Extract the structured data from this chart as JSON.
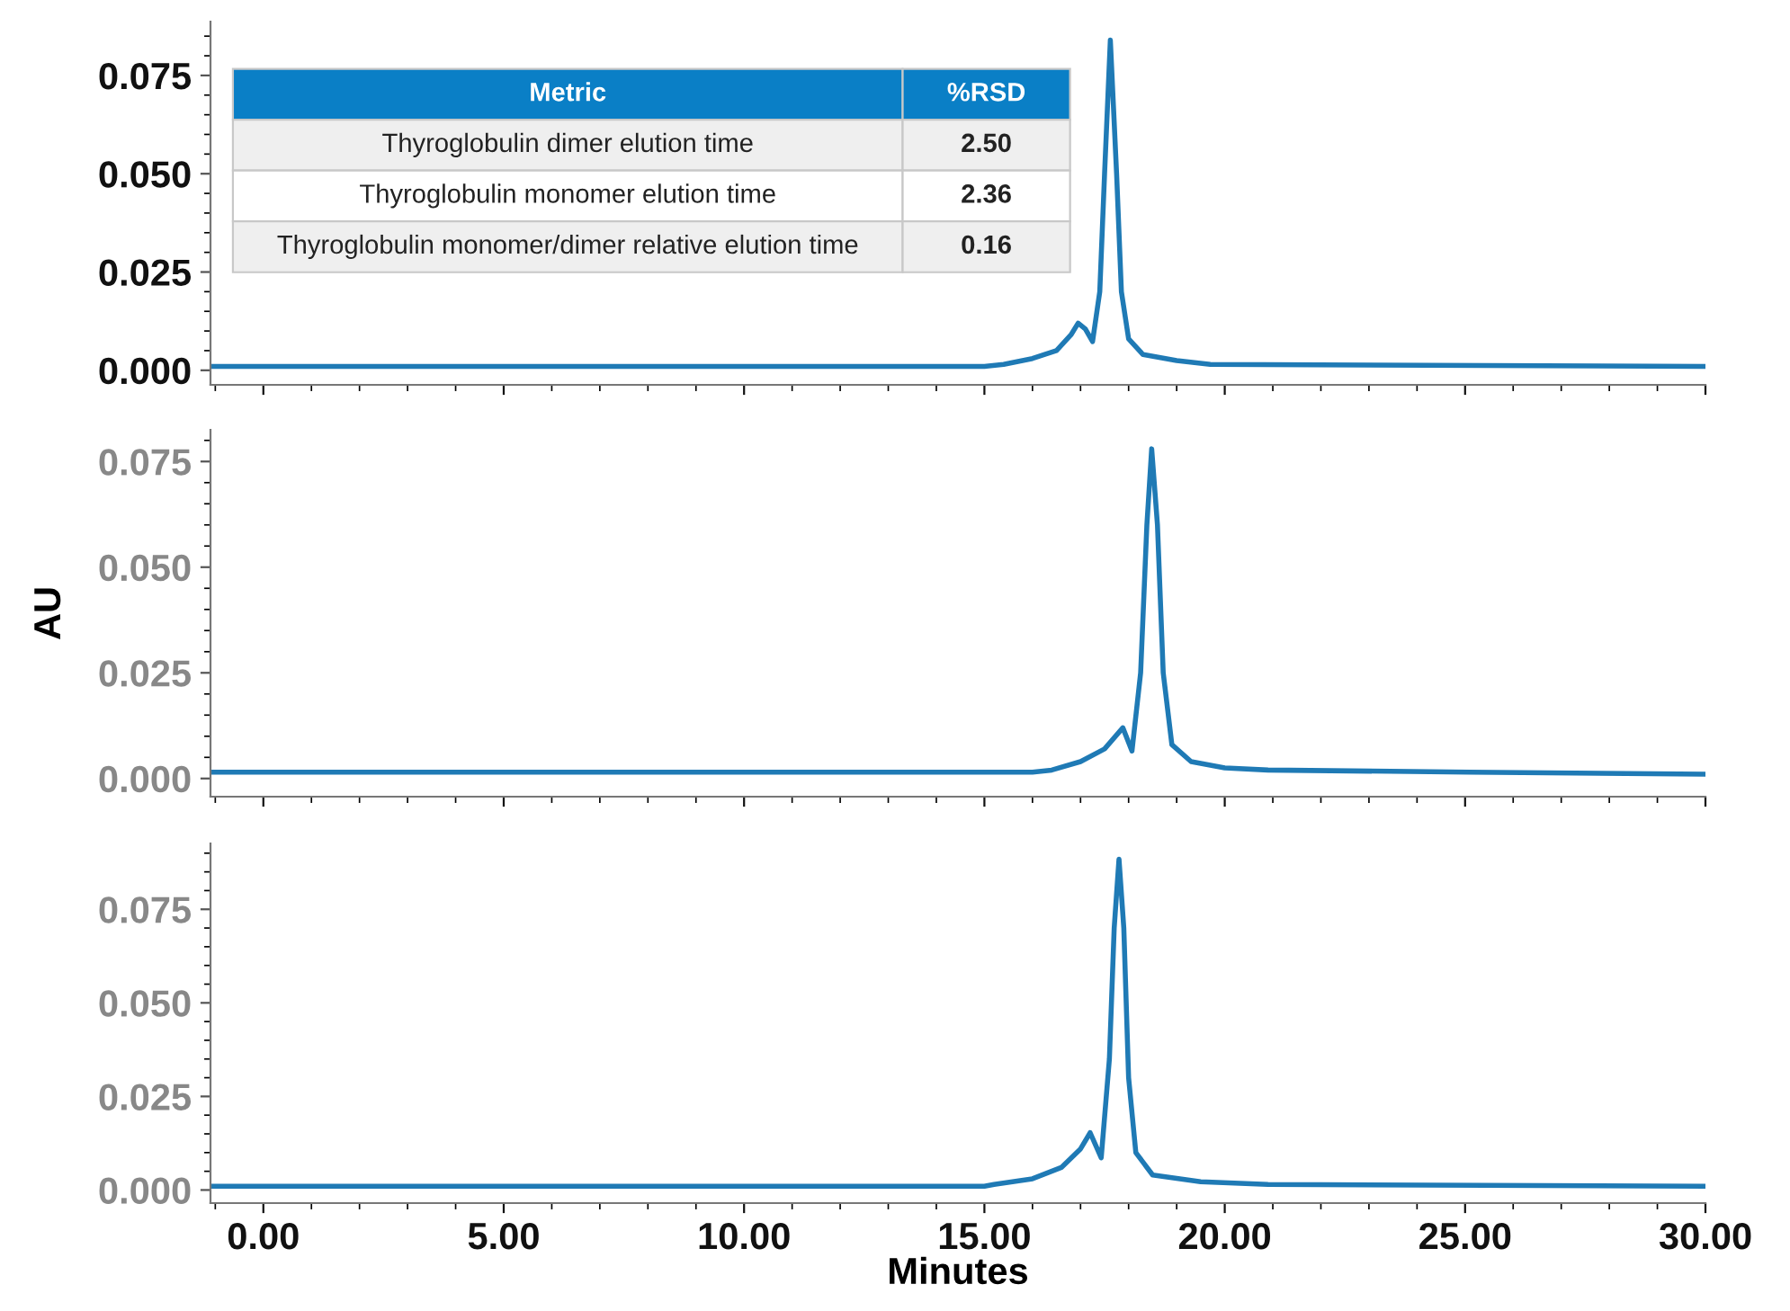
{
  "chart_data": [
    {
      "type": "line",
      "x": [
        -1.1,
        15.0,
        15.4,
        16.0,
        16.5,
        16.8,
        16.95,
        17.1,
        17.25,
        17.4,
        17.5,
        17.62,
        17.75,
        17.85,
        18.0,
        18.3,
        19.0,
        19.7,
        30
      ],
      "series": [
        {
          "color": "#1f7ab5",
          "values": [
            0.001,
            0.001,
            0.0015,
            0.003,
            0.005,
            0.009,
            0.012,
            0.0105,
            0.0073,
            0.02,
            0.05,
            0.084,
            0.05,
            0.02,
            0.008,
            0.004,
            0.0025,
            0.0015,
            0.001
          ]
        }
      ],
      "xlim": [
        -1.1,
        30
      ],
      "xticks": [
        {
          "value": 0,
          "label": null
        },
        {
          "value": 5,
          "label": null
        },
        {
          "value": 10,
          "label": null
        },
        {
          "value": 15,
          "label": null
        },
        {
          "value": 20,
          "label": null
        },
        {
          "value": 25,
          "label": null
        },
        {
          "value": 30,
          "label": null
        }
      ],
      "ylim": [
        -0.0037,
        0.0887
      ],
      "yticks": [
        {
          "value": 0,
          "label": "0.000"
        },
        {
          "value": 0.025,
          "label": "0.025"
        },
        {
          "value": 0.05,
          "label": "0.050"
        },
        {
          "value": 0.075,
          "label": "0.075"
        }
      ],
      "tick_labels": "y",
      "grid": false,
      "legend": false,
      "annotations": [
        "Metric",
        "%RSD",
        "Thyroglobulin dimer elution time",
        "2.50",
        "Thyroglobulin monomer elution time",
        "2.36",
        "Thyroglobulin monomer/dimer relative elution time",
        "0.16"
      ]
    },
    {
      "type": "line",
      "x": [
        -1.1,
        16.0,
        16.4,
        17.0,
        17.5,
        17.88,
        18.07,
        18.25,
        18.38,
        18.48,
        18.6,
        18.72,
        18.9,
        19.3,
        20.0,
        20.9,
        25.1,
        30
      ],
      "series": [
        {
          "color": "#1f7ab5",
          "values": [
            0.0015,
            0.0015,
            0.002,
            0.004,
            0.007,
            0.012,
            0.0065,
            0.025,
            0.06,
            0.078,
            0.06,
            0.025,
            0.008,
            0.004,
            0.0025,
            0.002,
            0.0015,
            0.001
          ]
        }
      ],
      "xlim": [
        -1.1,
        30
      ],
      "xticks": [
        {
          "value": 0,
          "label": null
        },
        {
          "value": 5,
          "label": null
        },
        {
          "value": 10,
          "label": null
        },
        {
          "value": 15,
          "label": null
        },
        {
          "value": 20,
          "label": null
        },
        {
          "value": 25,
          "label": null
        },
        {
          "value": 30,
          "label": null
        }
      ],
      "ylim": [
        -0.0043,
        0.0825
      ],
      "yticks": [
        {
          "value": 0,
          "label": "0.000"
        },
        {
          "value": 0.025,
          "label": "0.025"
        },
        {
          "value": 0.05,
          "label": "0.050"
        },
        {
          "value": 0.075,
          "label": "0.075"
        }
      ],
      "ylabel": "AU",
      "tick_labels": "y",
      "grid": false,
      "legend": false
    },
    {
      "type": "line",
      "x": [
        -1.1,
        15.0,
        15.2,
        16.0,
        16.6,
        17.0,
        17.2,
        17.43,
        17.6,
        17.7,
        17.8,
        17.9,
        18.0,
        18.15,
        18.5,
        19.5,
        20.9,
        30
      ],
      "series": [
        {
          "color": "#1f7ab5",
          "values": [
            0.001,
            0.001,
            0.0015,
            0.003,
            0.006,
            0.011,
            0.0153,
            0.0086,
            0.035,
            0.07,
            0.0884,
            0.07,
            0.03,
            0.01,
            0.004,
            0.0022,
            0.0015,
            0.001
          ]
        }
      ],
      "xlim": [
        -1.1,
        30
      ],
      "xticks": [
        {
          "value": 0,
          "label": "0.00"
        },
        {
          "value": 5,
          "label": "5.00"
        },
        {
          "value": 10,
          "label": "10.00"
        },
        {
          "value": 15,
          "label": "15.00"
        },
        {
          "value": 20,
          "label": "20.00"
        },
        {
          "value": 25,
          "label": "25.00"
        },
        {
          "value": 30,
          "label": "30.00"
        }
      ],
      "ylim": [
        -0.0035,
        0.0926
      ],
      "yticks": [
        {
          "value": 0,
          "label": "0.000"
        },
        {
          "value": 0.025,
          "label": "0.025"
        },
        {
          "value": 0.05,
          "label": "0.050"
        },
        {
          "value": 0.075,
          "label": "0.075"
        }
      ],
      "xlabel": "Minutes",
      "grid": false,
      "legend": false
    }
  ]
}
